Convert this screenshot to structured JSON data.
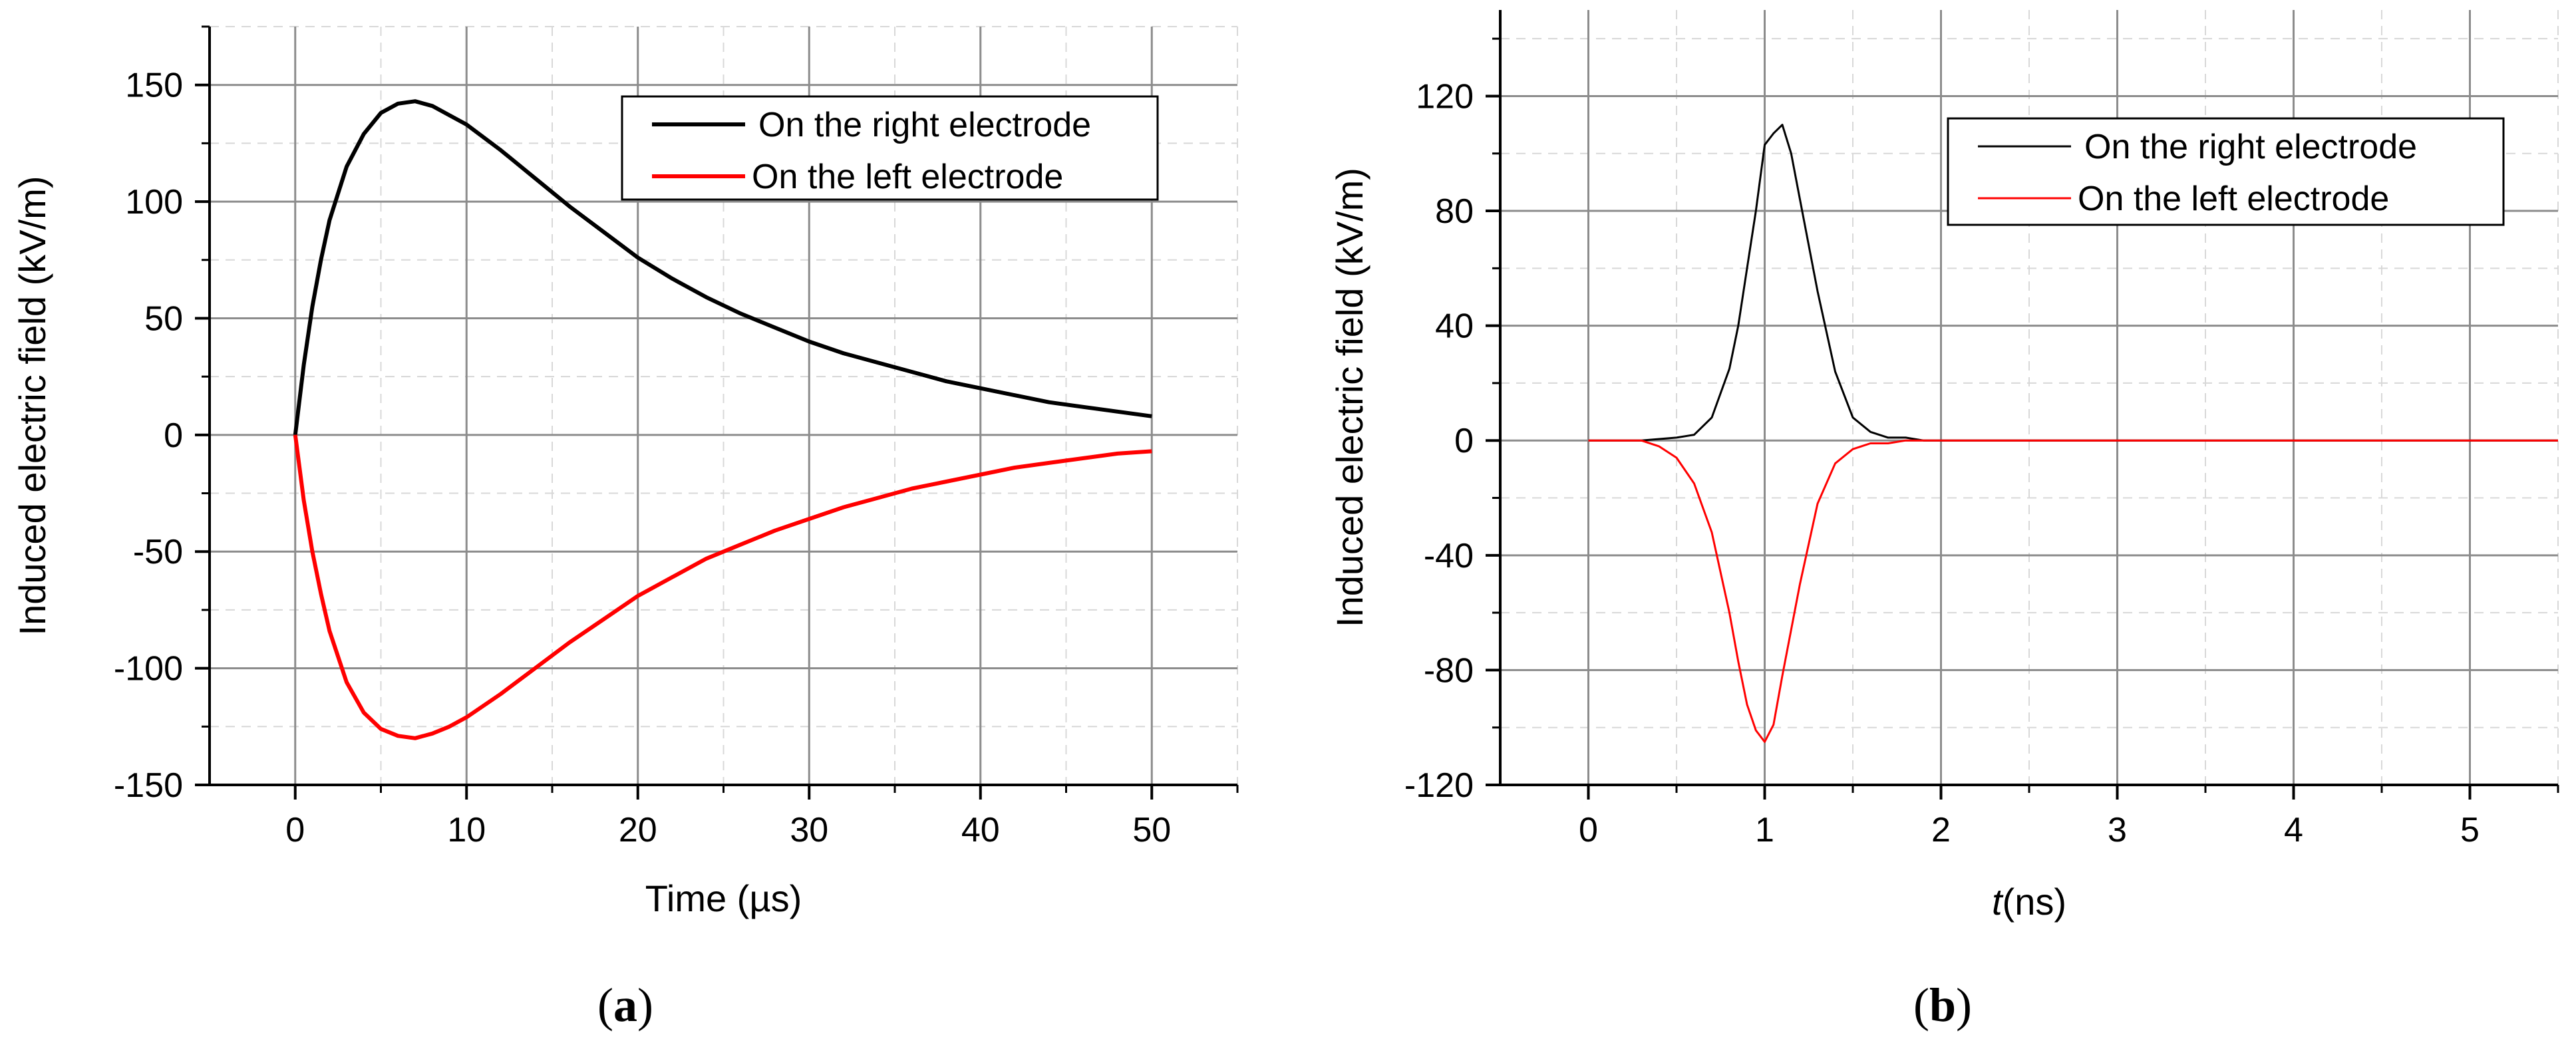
{
  "chart_data": [
    {
      "type": "line",
      "panel_label": "a",
      "xlabel": "Time (µs)",
      "ylabel": "Induced electric field (kV/m)",
      "xlim": [
        -5,
        55
      ],
      "ylim": [
        -150,
        175
      ],
      "x_ticks": [
        0,
        10,
        20,
        30,
        40,
        50
      ],
      "x_tick_labels": [
        "0",
        "10",
        "20",
        "30",
        "40",
        "50"
      ],
      "y_ticks": [
        -150,
        -100,
        -50,
        0,
        50,
        100,
        150
      ],
      "y_tick_labels": [
        "-150",
        "-100",
        "-50",
        "0",
        "50",
        "100",
        "150"
      ],
      "grid": true,
      "legend_position": "top-right",
      "series": [
        {
          "name": "On the right electrode",
          "color": "#000000",
          "x": [
            0,
            0.5,
            1,
            1.5,
            2,
            3,
            4,
            5,
            6,
            7,
            8,
            9,
            10,
            12,
            14,
            16,
            18,
            20,
            22,
            24,
            26,
            28,
            30,
            32,
            34,
            36,
            38,
            40,
            42,
            44,
            46,
            48,
            50
          ],
          "y": [
            0,
            30,
            55,
            75,
            92,
            115,
            129,
            138,
            142,
            143,
            141,
            137,
            133,
            122,
            110,
            98,
            87,
            76,
            67,
            59,
            52,
            46,
            40,
            35,
            31,
            27,
            23,
            20,
            17,
            14,
            12,
            10,
            8
          ]
        },
        {
          "name": "On the left electrode",
          "color": "#ff0000",
          "x": [
            0,
            0.5,
            1,
            1.5,
            2,
            3,
            4,
            5,
            6,
            7,
            8,
            9,
            10,
            12,
            14,
            16,
            18,
            20,
            22,
            24,
            26,
            28,
            30,
            32,
            34,
            36,
            38,
            40,
            42,
            44,
            46,
            48,
            50
          ],
          "y": [
            0,
            -28,
            -50,
            -68,
            -84,
            -106,
            -119,
            -126,
            -129,
            -130,
            -128,
            -125,
            -121,
            -111,
            -100,
            -89,
            -79,
            -69,
            -61,
            -53,
            -47,
            -41,
            -36,
            -31,
            -27,
            -23,
            -20,
            -17,
            -14,
            -12,
            -10,
            -8,
            -7
          ]
        }
      ]
    },
    {
      "type": "line",
      "panel_label": "b",
      "xlabel_italic": "t",
      "xlabel_rest": "(ns)",
      "ylabel": "Induced electric field (kV/m)",
      "xlim": [
        -0.5,
        5.5
      ],
      "ylim": [
        -120,
        150
      ],
      "x_ticks": [
        0,
        1,
        2,
        3,
        4,
        5
      ],
      "x_tick_labels": [
        "0",
        "1",
        "2",
        "3",
        "4",
        "5"
      ],
      "y_ticks": [
        -120,
        -80,
        -40,
        0,
        40,
        80,
        120
      ],
      "y_tick_labels": [
        "-120",
        "-80",
        "-40",
        "0",
        "40",
        "80",
        "120"
      ],
      "grid": true,
      "legend_position": "top-right",
      "series": [
        {
          "name": "On the right electrode",
          "color": "#000000",
          "x": [
            0,
            0.3,
            0.5,
            0.6,
            0.7,
            0.8,
            0.85,
            0.9,
            0.95,
            1.0,
            1.05,
            1.1,
            1.15,
            1.2,
            1.3,
            1.4,
            1.5,
            1.6,
            1.7,
            1.8,
            1.9,
            2.0,
            5.5
          ],
          "y": [
            0,
            0,
            1,
            2,
            8,
            25,
            40,
            60,
            80,
            103,
            107,
            110,
            100,
            84,
            52,
            24,
            8,
            3,
            1,
            1,
            0,
            0,
            0
          ]
        },
        {
          "name": "On the left electrode",
          "color": "#ff0000",
          "x": [
            0,
            0.3,
            0.4,
            0.5,
            0.6,
            0.7,
            0.8,
            0.85,
            0.9,
            0.95,
            1.0,
            1.05,
            1.1,
            1.2,
            1.3,
            1.4,
            1.5,
            1.6,
            1.7,
            1.8,
            1.9,
            2.0,
            5.5
          ],
          "y": [
            0,
            0,
            -2,
            -6,
            -15,
            -32,
            -60,
            -77,
            -92,
            -101,
            -105,
            -99,
            -82,
            -50,
            -22,
            -8,
            -3,
            -1,
            -1,
            0,
            0,
            0,
            0
          ]
        }
      ]
    }
  ]
}
